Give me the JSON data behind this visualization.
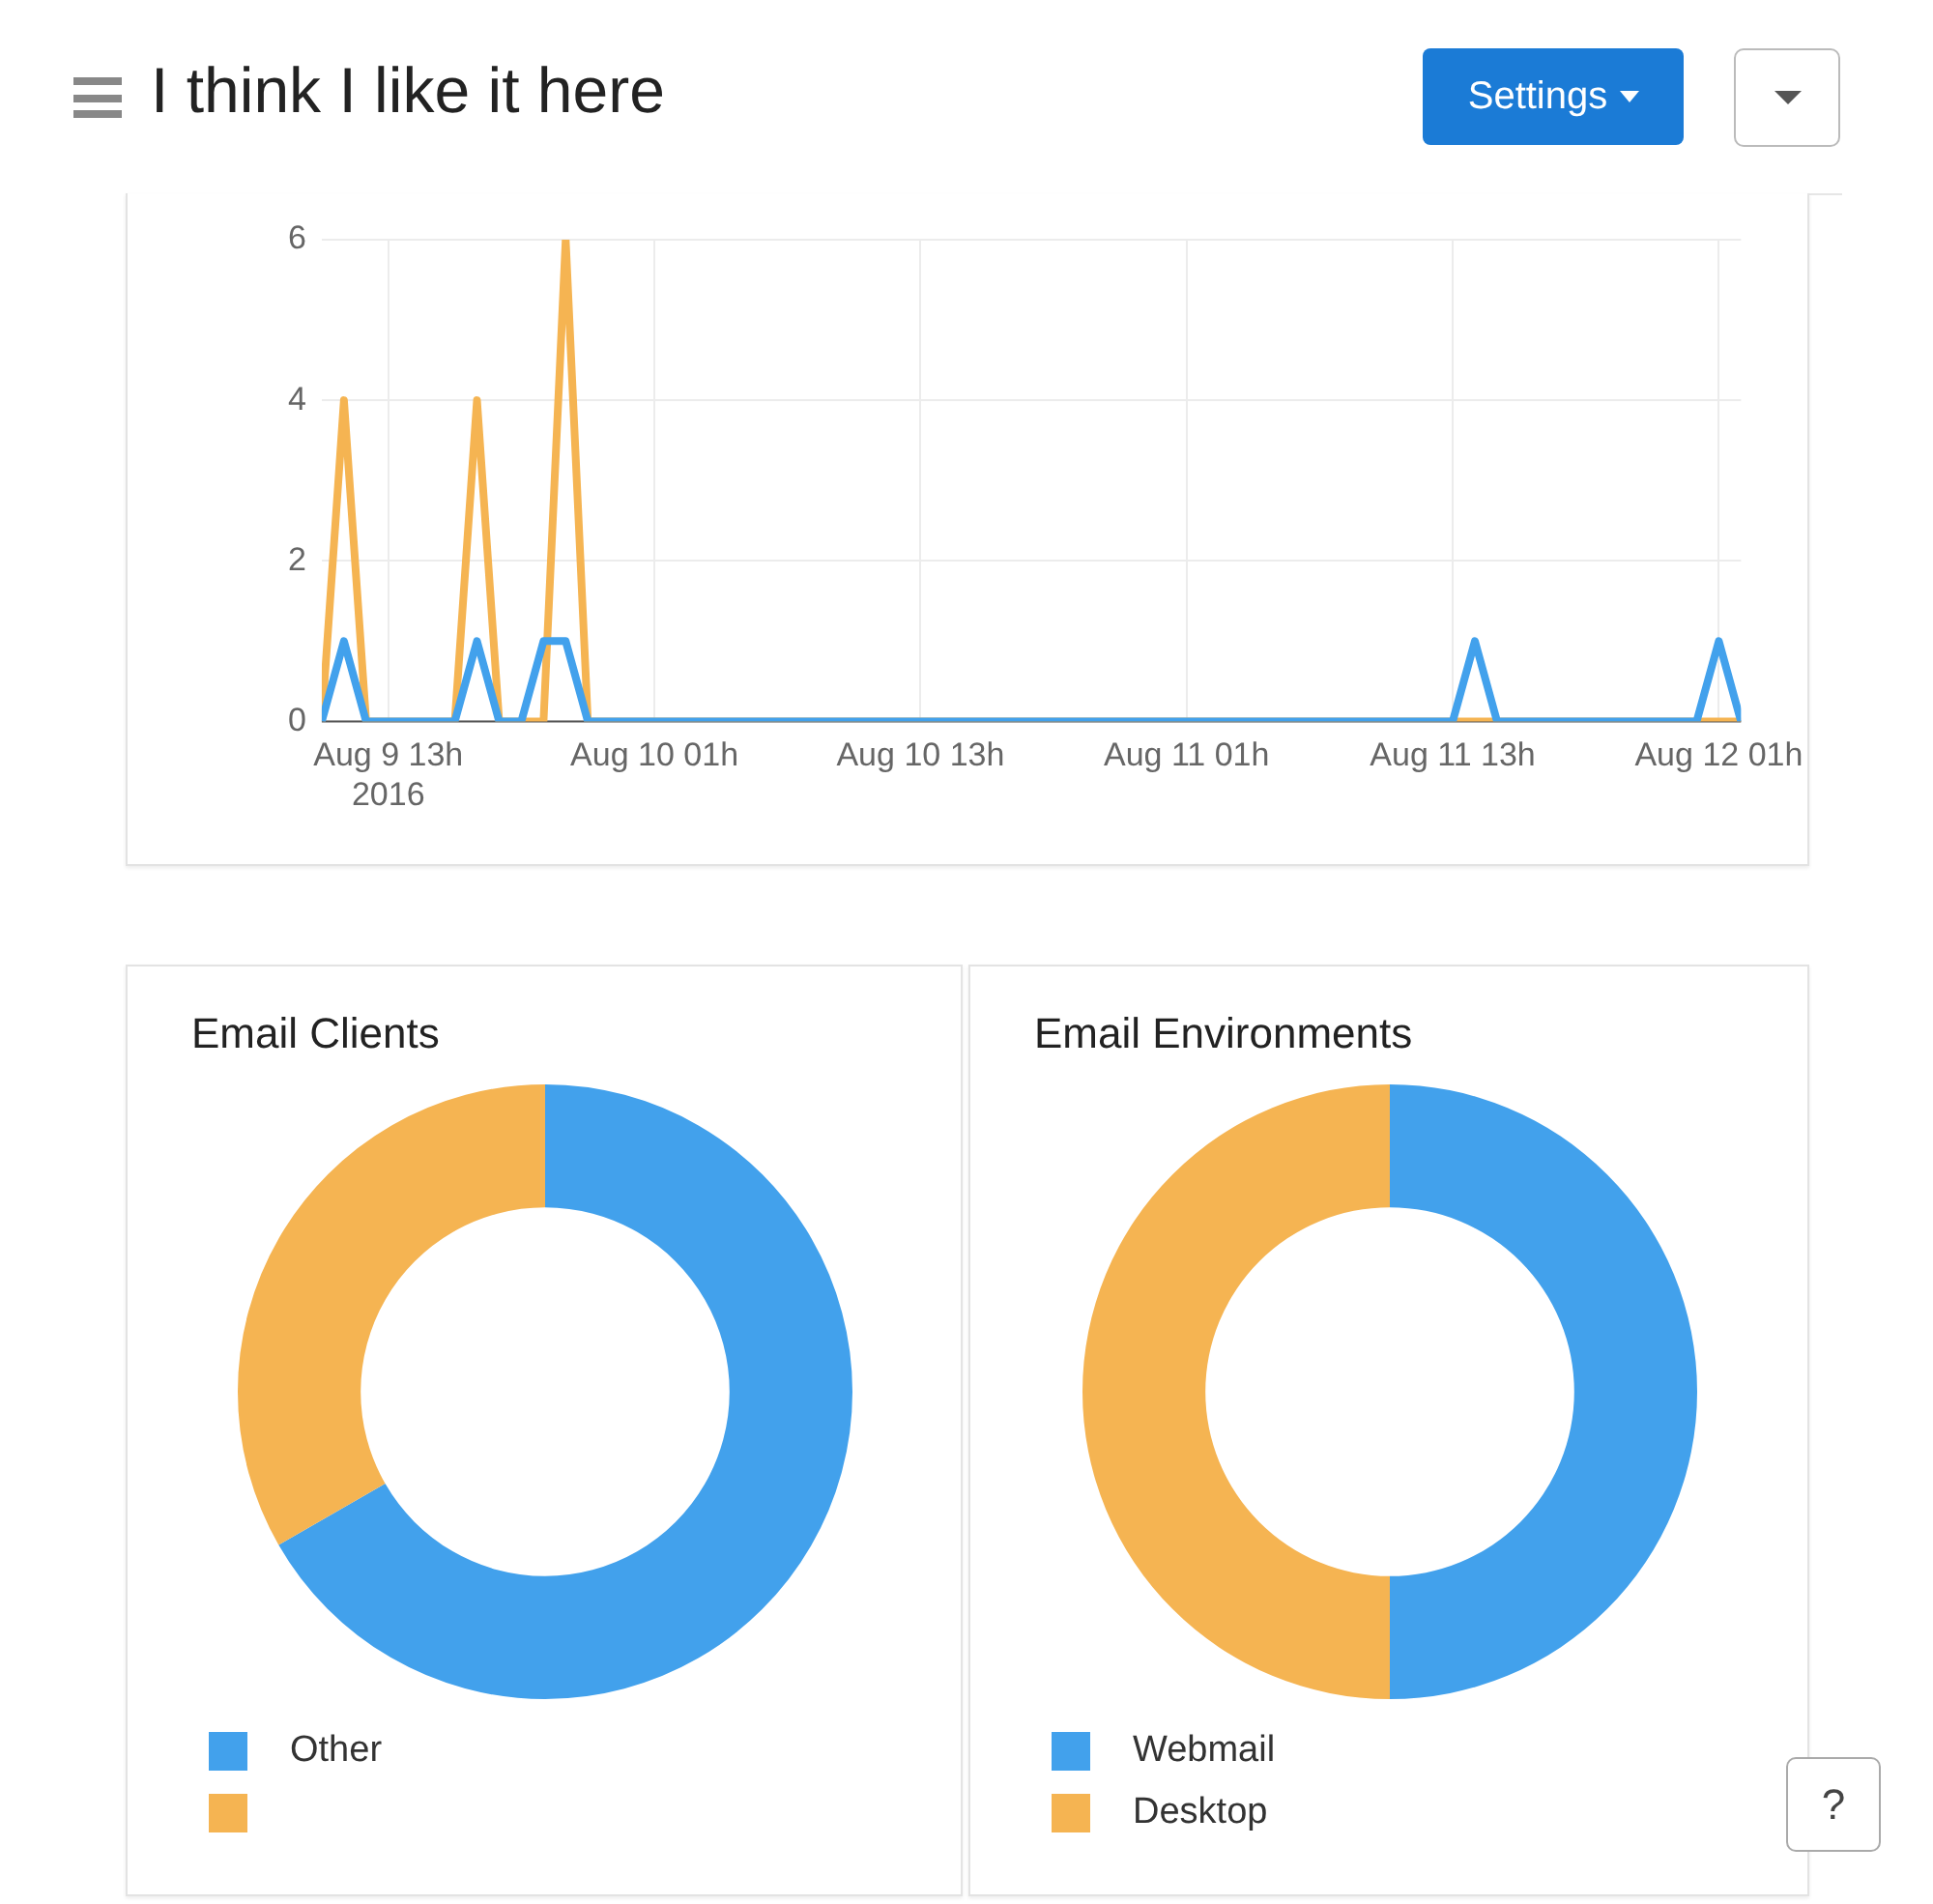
{
  "chart_data": [
    {
      "type": "line",
      "title": "I think I like it here",
      "annotations": [
        "Settings",
        "?"
      ],
      "marker": "none",
      "grid": true,
      "legend": false,
      "xlim": [
        "2016-08-09T10:00",
        "2016-08-12T02:00"
      ],
      "xticks": [
        {
          "value": "2016-08-09T13:00",
          "label": "Aug 9 13h\n2016"
        },
        {
          "value": "2016-08-10T01:00",
          "label": "Aug 10 01h"
        },
        {
          "value": "2016-08-10T13:00",
          "label": "Aug 10 13h"
        },
        {
          "value": "2016-08-11T01:00",
          "label": "Aug 11 01h"
        },
        {
          "value": "2016-08-11T13:00",
          "label": "Aug 11 13h"
        },
        {
          "value": "2016-08-12T01:00",
          "label": "Aug 12 01h"
        }
      ],
      "ylim": [
        0,
        6
      ],
      "yticks": [
        0,
        2,
        4,
        6
      ],
      "series": [
        {
          "color": "#f5b452",
          "x": [
            "2016-08-09T10:00",
            "2016-08-09T11:00",
            "2016-08-09T12:00",
            "2016-08-09T16:00",
            "2016-08-09T17:00",
            "2016-08-09T18:00",
            "2016-08-09T20:00",
            "2016-08-09T21:00",
            "2016-08-09T22:00",
            "2016-08-12T02:00"
          ],
          "values": [
            0,
            4,
            0,
            0,
            4,
            0,
            0,
            6,
            0,
            0
          ]
        },
        {
          "color": "#42a1ec",
          "x": [
            "2016-08-09T10:00",
            "2016-08-09T11:00",
            "2016-08-09T12:00",
            "2016-08-09T16:00",
            "2016-08-09T17:00",
            "2016-08-09T18:00",
            "2016-08-09T19:00",
            "2016-08-09T20:00",
            "2016-08-09T21:00",
            "2016-08-09T22:00",
            "2016-08-11T13:00",
            "2016-08-11T14:00",
            "2016-08-11T15:00",
            "2016-08-12T00:00",
            "2016-08-12T01:00",
            "2016-08-12T02:00"
          ],
          "values": [
            0,
            1,
            0,
            0,
            1,
            0,
            0,
            1,
            1,
            0,
            0,
            1,
            0,
            0,
            1,
            0
          ]
        }
      ]
    },
    {
      "type": "donut",
      "title": "Email Clients",
      "legend": "bottom",
      "categories": [
        "Other",
        null
      ],
      "values": [
        66.7,
        33.3
      ],
      "colors": [
        "#42a1ec",
        "#f5b452"
      ]
    },
    {
      "type": "donut",
      "title": "Email Environments",
      "legend": "bottom",
      "categories": [
        "Webmail",
        "Desktop"
      ],
      "values": [
        50,
        50
      ],
      "colors": [
        "#42a1ec",
        "#f5b452"
      ]
    }
  ]
}
